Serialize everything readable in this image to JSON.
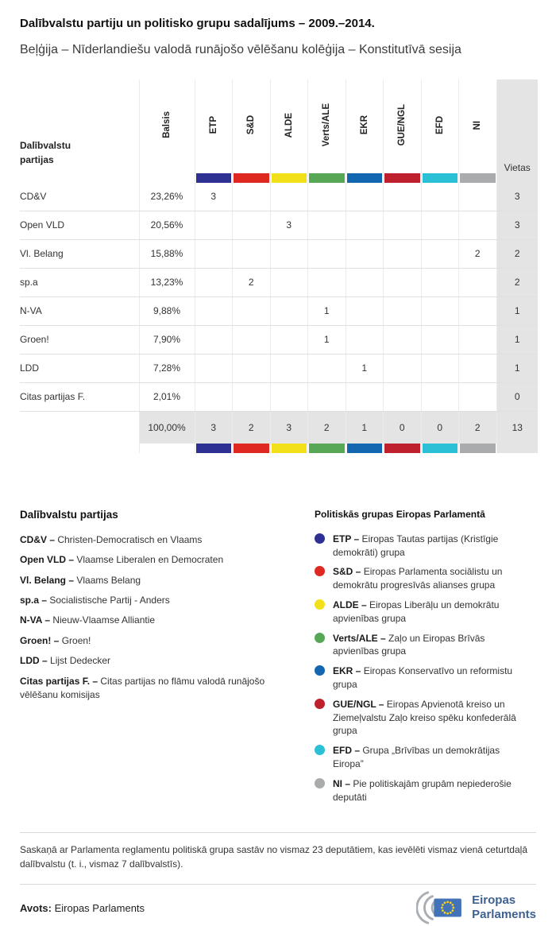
{
  "dash": "–",
  "header": {
    "title": "Dalībvalstu partiju un politisko grupu sadalījums – 2009.–2014.",
    "subtitle": "Beļģija – Nīderlandiešu valodā runājošo vēlēšanu kolēģija – Konstitutīvā sesija"
  },
  "table": {
    "corner_label": "Dalībvalstu partijas",
    "votes_label": "Balsis",
    "seats_label": "Vietas"
  },
  "chart_data": {
    "type": "table",
    "title": "Dalībvalstu partiju un politisko grupu sadalījums – 2009.–2014.",
    "subtitle": "Beļģija – Nīderlandiešu valodā runājošo vēlēšanu kolēģija – Konstitutīvā sesija",
    "group_columns": [
      "ETP",
      "S&D",
      "ALDE",
      "Verts/ALE",
      "EKR",
      "GUE/NGL",
      "EFD",
      "NI"
    ],
    "group_colors": [
      "#2e3192",
      "#e02822",
      "#f2e01a",
      "#57a757",
      "#1367b1",
      "#bf202d",
      "#2bc0d6",
      "#a9abad"
    ],
    "rows": [
      {
        "party": "CD&V",
        "votes": "23,26%",
        "groups": [
          "3",
          "",
          "",
          "",
          "",
          "",
          "",
          ""
        ],
        "seats": "3"
      },
      {
        "party": "Open VLD",
        "votes": "20,56%",
        "groups": [
          "",
          "",
          "3",
          "",
          "",
          "",
          "",
          ""
        ],
        "seats": "3"
      },
      {
        "party": "Vl. Belang",
        "votes": "15,88%",
        "groups": [
          "",
          "",
          "",
          "",
          "",
          "",
          "",
          "2"
        ],
        "seats": "2"
      },
      {
        "party": "sp.a",
        "votes": "13,23%",
        "groups": [
          "",
          "2",
          "",
          "",
          "",
          "",
          "",
          ""
        ],
        "seats": "2"
      },
      {
        "party": "N-VA",
        "votes": "9,88%",
        "groups": [
          "",
          "",
          "",
          "1",
          "",
          "",
          "",
          ""
        ],
        "seats": "1"
      },
      {
        "party": "Groen!",
        "votes": "7,90%",
        "groups": [
          "",
          "",
          "",
          "1",
          "",
          "",
          "",
          ""
        ],
        "seats": "1"
      },
      {
        "party": "LDD",
        "votes": "7,28%",
        "groups": [
          "",
          "",
          "",
          "",
          "1",
          "",
          "",
          ""
        ],
        "seats": "1"
      },
      {
        "party": "Citas partijas F.",
        "votes": "2,01%",
        "groups": [
          "",
          "",
          "",
          "",
          "",
          "",
          "",
          ""
        ],
        "seats": "0"
      }
    ],
    "total": {
      "votes": "100,00%",
      "groups": [
        "3",
        "2",
        "3",
        "2",
        "1",
        "0",
        "0",
        "2"
      ],
      "seats": "13"
    }
  },
  "party_legend": {
    "heading": "Dalībvalstu partijas",
    "items": [
      {
        "abbr": "CD&V",
        "desc": "Christen-Democratisch en Vlaams"
      },
      {
        "abbr": "Open VLD",
        "desc": "Vlaamse Liberalen en Democraten"
      },
      {
        "abbr": "Vl. Belang",
        "desc": "Vlaams Belang"
      },
      {
        "abbr": "sp.a",
        "desc": "Socialistische Partij - Anders"
      },
      {
        "abbr": "N-VA",
        "desc": "Nieuw-Vlaamse Alliantie"
      },
      {
        "abbr": "Groen!",
        "desc": "Groen!"
      },
      {
        "abbr": "LDD",
        "desc": "Lijst Dedecker"
      },
      {
        "abbr": "Citas partijas F.",
        "desc": "Citas partijas no flāmu valodā runājošo vēlēšanu komisijas"
      }
    ]
  },
  "group_legend": {
    "heading": "Politiskās grupas Eiropas Parlamentā",
    "items": [
      {
        "code": "ETP",
        "desc": "Eiropas Tautas partijas (Kristīgie demokrāti) grupa"
      },
      {
        "code": "S&D",
        "desc": "Eiropas Parlamenta sociālistu un demokrātu progresīvās alianses grupa"
      },
      {
        "code": "ALDE",
        "desc": "Eiropas Liberāļu un demokrātu apvienības grupa"
      },
      {
        "code": "Verts/ALE",
        "desc": "Zaļo un Eiropas Brīvās apvienības grupa"
      },
      {
        "code": "EKR",
        "desc": "Eiropas Konservatīvo un reformistu grupa"
      },
      {
        "code": "GUE/NGL",
        "desc": "Eiropas Apvienotā kreiso un Ziemeļvalstu Zaļo kreiso spēku konfederālā grupa"
      },
      {
        "code": "EFD",
        "desc": "Grupa „Brīvības un demokrātijas Eiropa”"
      },
      {
        "code": "NI",
        "desc": "Pie politiskajām grupām nepiederošie deputāti"
      }
    ]
  },
  "footnote": "Saskaņā ar Parlamenta reglamentu politiskā grupa sastāv no vismaz 23 deputātiem, kas ievēlēti vismaz vienā ceturtdaļā dalībvalstu (t. i., vismaz 7 dalībvalstīs).",
  "source": {
    "label": "Avots:",
    "value": "Eiropas Parlaments"
  },
  "logo": {
    "line1": "Eiropas",
    "line2": "Parlaments",
    "text_color": "#3e6191",
    "flag_color": "#4273b8",
    "star_color": "#ffd617",
    "arc_color": "#a9aeb3"
  }
}
